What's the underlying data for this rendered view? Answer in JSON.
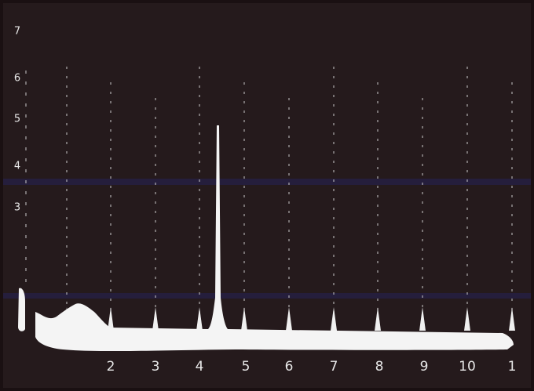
{
  "y_labels": [
    "7",
    "6",
    "5",
    "4",
    "3"
  ],
  "x_labels": [
    "2",
    "3",
    "4",
    "5",
    "6",
    "7",
    "8",
    "9",
    "10",
    "1"
  ]
}
